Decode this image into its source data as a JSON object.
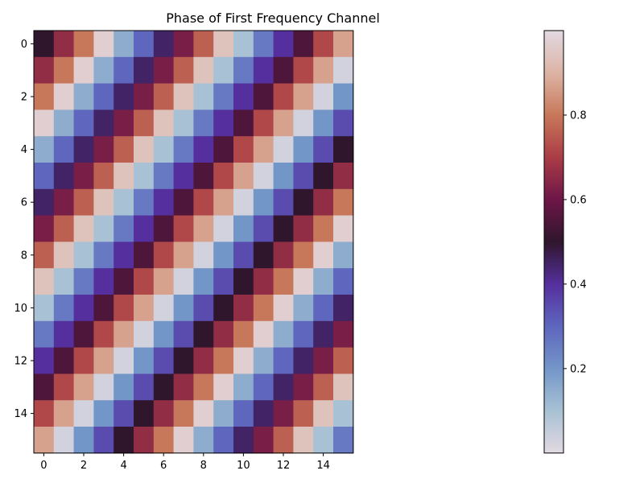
{
  "chart_data": {
    "type": "heatmap",
    "title": "Phase of First Frequency Channel",
    "xlabel": "",
    "ylabel": "",
    "colormap": "twilight",
    "rows": 16,
    "cols": 16,
    "x_ticks": [
      0,
      2,
      4,
      6,
      8,
      10,
      12,
      14
    ],
    "y_ticks": [
      0,
      2,
      4,
      6,
      8,
      10,
      12,
      14
    ],
    "x_tick_labels": [
      "0",
      "2",
      "4",
      "6",
      "8",
      "10",
      "12",
      "14"
    ],
    "y_tick_labels": [
      "0",
      "2",
      "4",
      "6",
      "8",
      "10",
      "12",
      "14"
    ],
    "colorbar": {
      "range": [
        0.0,
        1.0
      ],
      "ticks": [
        0.2,
        0.4,
        0.6,
        0.8
      ],
      "tick_labels": [
        "0.2",
        "0.4",
        "0.6",
        "0.8"
      ]
    },
    "values": [
      [
        0.5,
        0.66,
        0.8,
        0.97,
        0.15,
        0.3,
        0.45,
        0.62,
        0.76,
        0.94,
        0.1,
        0.26,
        0.4,
        0.55,
        0.72,
        0.87
      ],
      [
        0.66,
        0.8,
        0.97,
        0.15,
        0.3,
        0.45,
        0.62,
        0.76,
        0.94,
        0.1,
        0.26,
        0.4,
        0.55,
        0.72,
        0.87,
        0.03
      ],
      [
        0.8,
        0.97,
        0.15,
        0.3,
        0.45,
        0.62,
        0.76,
        0.94,
        0.1,
        0.26,
        0.4,
        0.55,
        0.72,
        0.87,
        0.03,
        0.2
      ],
      [
        0.97,
        0.15,
        0.3,
        0.45,
        0.62,
        0.76,
        0.94,
        0.1,
        0.26,
        0.4,
        0.55,
        0.72,
        0.87,
        0.03,
        0.2,
        0.35
      ],
      [
        0.15,
        0.3,
        0.45,
        0.62,
        0.76,
        0.94,
        0.1,
        0.26,
        0.4,
        0.55,
        0.72,
        0.87,
        0.03,
        0.2,
        0.35,
        0.5
      ],
      [
        0.3,
        0.45,
        0.62,
        0.76,
        0.94,
        0.1,
        0.26,
        0.4,
        0.55,
        0.72,
        0.87,
        0.03,
        0.2,
        0.35,
        0.5,
        0.66
      ],
      [
        0.45,
        0.62,
        0.76,
        0.94,
        0.1,
        0.26,
        0.4,
        0.55,
        0.72,
        0.87,
        0.03,
        0.2,
        0.35,
        0.5,
        0.66,
        0.8
      ],
      [
        0.62,
        0.76,
        0.94,
        0.1,
        0.26,
        0.4,
        0.55,
        0.72,
        0.87,
        0.03,
        0.2,
        0.35,
        0.5,
        0.66,
        0.8,
        0.97
      ],
      [
        0.76,
        0.94,
        0.1,
        0.26,
        0.4,
        0.55,
        0.72,
        0.87,
        0.03,
        0.2,
        0.35,
        0.5,
        0.66,
        0.8,
        0.97,
        0.15
      ],
      [
        0.94,
        0.1,
        0.26,
        0.4,
        0.55,
        0.72,
        0.87,
        0.03,
        0.2,
        0.35,
        0.5,
        0.66,
        0.8,
        0.97,
        0.15,
        0.3
      ],
      [
        0.1,
        0.26,
        0.4,
        0.55,
        0.72,
        0.87,
        0.03,
        0.2,
        0.35,
        0.5,
        0.66,
        0.8,
        0.97,
        0.15,
        0.3,
        0.45
      ],
      [
        0.26,
        0.4,
        0.55,
        0.72,
        0.87,
        0.03,
        0.2,
        0.35,
        0.5,
        0.66,
        0.8,
        0.97,
        0.15,
        0.3,
        0.45,
        0.62
      ],
      [
        0.4,
        0.55,
        0.72,
        0.87,
        0.03,
        0.2,
        0.35,
        0.5,
        0.66,
        0.8,
        0.97,
        0.15,
        0.3,
        0.45,
        0.62,
        0.76
      ],
      [
        0.55,
        0.72,
        0.87,
        0.03,
        0.2,
        0.35,
        0.5,
        0.66,
        0.8,
        0.97,
        0.15,
        0.3,
        0.45,
        0.62,
        0.76,
        0.94
      ],
      [
        0.72,
        0.87,
        0.03,
        0.2,
        0.35,
        0.5,
        0.66,
        0.8,
        0.97,
        0.15,
        0.3,
        0.45,
        0.62,
        0.76,
        0.94,
        0.1
      ],
      [
        0.87,
        0.03,
        0.2,
        0.35,
        0.5,
        0.66,
        0.8,
        0.97,
        0.15,
        0.3,
        0.45,
        0.62,
        0.76,
        0.94,
        0.1,
        0.26
      ]
    ]
  }
}
